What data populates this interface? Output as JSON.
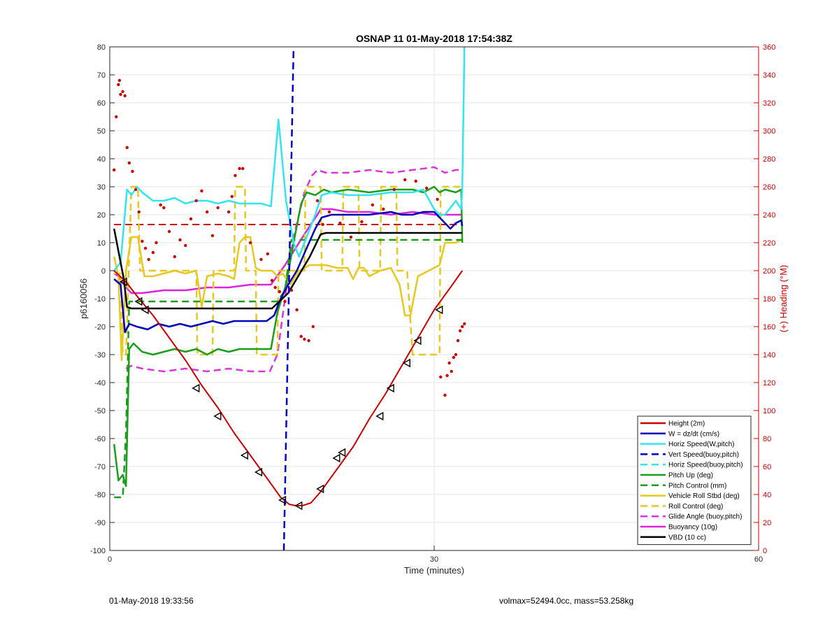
{
  "chart_data": {
    "type": "line",
    "title": "OSNAP 11 01-May-2018 17:54:38Z",
    "xlabel": "Time (minutes)",
    "ylabel": "p6160056",
    "y2label": "(+) Heading (°M)",
    "xlim": [
      0,
      60
    ],
    "ylim": [
      -100,
      80
    ],
    "y2lim": [
      0,
      360
    ],
    "xticks": [
      "0",
      "30",
      "60"
    ],
    "yticks": [
      "80",
      "70",
      "60",
      "50",
      "40",
      "30",
      "20",
      "10",
      "0",
      "-10",
      "-20",
      "-30",
      "-40",
      "-50",
      "-60",
      "-70",
      "-80",
      "-90",
      "-100"
    ],
    "y2ticks": [
      "360",
      "340",
      "320",
      "300",
      "280",
      "260",
      "240",
      "220",
      "200",
      "180",
      "160",
      "140",
      "120",
      "100",
      "80",
      "60",
      "40",
      "20",
      "0"
    ],
    "grid": true,
    "legend_position": "bottom-right",
    "series": [
      {
        "name": "Height (2m)",
        "color": "#cc0000",
        "style": "solid",
        "width": 2,
        "x": [
          0.4,
          1.5,
          2.5,
          4,
          5.5,
          7,
          8.5,
          10,
          11.5,
          13,
          14.5,
          15.8,
          16.6,
          17.2,
          17.8,
          18.6,
          19.5,
          21,
          22.5,
          24,
          25.5,
          27,
          28.5,
          30,
          31.5,
          32.6
        ],
        "y": [
          0,
          -4,
          -9,
          -16,
          -24,
          -32,
          -41,
          -49,
          -58,
          -66,
          -74,
          -81,
          -83.5,
          -84,
          -84,
          -83,
          -79,
          -71,
          -63,
          -53,
          -44,
          -34,
          -24,
          -14,
          -6,
          0
        ]
      },
      {
        "name": "W = dz/dt (cm/s)",
        "color": "#0000bb",
        "style": "solid",
        "width": 2.5,
        "x": [
          0.4,
          1,
          1.4,
          1.8,
          2.5,
          3.5,
          4.5,
          5.5,
          6.5,
          7.5,
          8.5,
          9.5,
          10.5,
          11.5,
          12.5,
          13.5,
          14.5,
          15.2,
          15.8,
          16.5,
          17.3,
          18.2,
          19,
          19.6,
          20.5,
          22,
          24,
          26,
          27,
          28,
          29,
          30,
          31,
          31.5,
          32,
          32.5,
          32.6
        ],
        "y": [
          -3,
          -5,
          -22,
          -19,
          -20,
          -21,
          -19,
          -20,
          -19,
          -20,
          -19,
          -18,
          -19,
          -18,
          -18,
          -18,
          -18,
          -16,
          -10,
          -5,
          0,
          8,
          15,
          19,
          20,
          20,
          20,
          21,
          20,
          20,
          21,
          21,
          17,
          15,
          17,
          18,
          16
        ]
      },
      {
        "name": "Horiz Speed(W,pitch)",
        "color": "#33e5f0",
        "style": "solid",
        "width": 2.5,
        "x": [
          0.4,
          1,
          1.6,
          2,
          2.5,
          3,
          4,
          5,
          6,
          7,
          8,
          9,
          10,
          11,
          12,
          13,
          14,
          14.9,
          15.6,
          16.3,
          17,
          17.5,
          18,
          19,
          19.6,
          20.5,
          22,
          24,
          26,
          28,
          29,
          30,
          30.5,
          31,
          32,
          32.5,
          32.6,
          32.8
        ],
        "y": [
          0,
          3,
          29,
          27,
          30,
          28,
          25,
          25,
          26,
          24,
          25,
          25,
          24,
          25,
          24,
          24,
          24,
          23,
          54,
          25,
          10,
          5,
          10,
          20,
          27,
          28,
          27,
          27,
          28,
          28,
          29,
          22,
          20,
          20,
          25,
          22,
          30,
          80
        ]
      },
      {
        "name": "Vert Speed(buoy,pitch)",
        "color": "#0000cc",
        "style": "dash",
        "width": 2.5,
        "x": [
          16.1,
          17.0
        ],
        "y": [
          -100,
          80
        ]
      },
      {
        "name": "Horiz Speed(buoy,pitch)",
        "color": "#33e5f0",
        "style": "dash",
        "width": 2.5,
        "x": [],
        "y": []
      },
      {
        "name": "Pitch Up (deg)",
        "color": "#1a9e1a",
        "style": "solid",
        "width": 2.5,
        "x": [
          0.4,
          0.8,
          1.2,
          1.5,
          1.8,
          2.2,
          3,
          4,
          5,
          6,
          7,
          8,
          9,
          10,
          11,
          12,
          13,
          14,
          14.9,
          15.5,
          16.3,
          17,
          17.7,
          18.2,
          19,
          19.8,
          20.5,
          22,
          24,
          26,
          28,
          29,
          30,
          30.5,
          31,
          32,
          32.5,
          32.6
        ],
        "y": [
          -62,
          -75,
          -73,
          -77,
          -28,
          -26,
          -29,
          -30,
          -29,
          -28,
          -29,
          -28,
          -30,
          -28,
          -29,
          -28,
          -28,
          -28,
          -28,
          -15,
          -5,
          10,
          24,
          28,
          27,
          29,
          28,
          29,
          28,
          29,
          29,
          28,
          30,
          28,
          29,
          28,
          29,
          10
        ]
      },
      {
        "name": "Pitch Control (mm)",
        "color": "#1a9e1a",
        "style": "dash",
        "width": 2.5,
        "x": [
          0.4,
          1.2,
          1.5,
          1.8,
          3,
          6,
          10,
          14,
          15.5,
          16.2,
          16.8,
          19,
          20,
          22,
          26,
          30,
          32.6
        ],
        "y": [
          -81,
          -81,
          -58,
          -11,
          -11,
          -11,
          -11,
          -11,
          -11,
          -7,
          11,
          11,
          11,
          11,
          11,
          11,
          11
        ]
      },
      {
        "name": "Vehicle Roll Stbd (deg)",
        "color": "#e6c81f",
        "style": "solid",
        "width": 2.5,
        "x": [
          0.4,
          0.8,
          1.1,
          1.5,
          2,
          2.6,
          3.2,
          4,
          5,
          6,
          7,
          8,
          8.5,
          9,
          10,
          11,
          11.5,
          12,
          12.5,
          13,
          13.5,
          14,
          15,
          15.5,
          16,
          16.7,
          17.5,
          18.5,
          19,
          20,
          21,
          22,
          22.5,
          23,
          23.5,
          24,
          25,
          26,
          26.8,
          27.3,
          27.8,
          28.5,
          29.5,
          30.5,
          31,
          32,
          32.5
        ],
        "y": [
          5,
          -2,
          -32,
          0,
          12,
          12,
          -2,
          -2,
          -1,
          0,
          -1,
          0,
          -13,
          -2,
          -1,
          -2,
          -3,
          10,
          12,
          12,
          1,
          0,
          0,
          -2,
          -1,
          -5,
          0,
          2,
          2,
          2,
          1,
          1,
          -3,
          1,
          1,
          -2,
          0,
          1,
          -5,
          -16,
          -16,
          -2,
          0,
          2,
          10,
          10,
          11
        ]
      },
      {
        "name": "Roll Control (deg)",
        "color": "#e6c81f",
        "style": "dash",
        "width": 2.5,
        "x": [
          0.4,
          1,
          1.2,
          1.5,
          2,
          2.6,
          2.8,
          3.2,
          4,
          8,
          8.1,
          9.5,
          9.6,
          11.5,
          11.6,
          12.5,
          12.6,
          13.5,
          13.6,
          15.5,
          15.6,
          17,
          18,
          18.1,
          19.5,
          19.6,
          21.5,
          21.6,
          23,
          23.1,
          25,
          25.1,
          26.5,
          26.6,
          27.5,
          28,
          28.1,
          30.5,
          30.6,
          32.6
        ],
        "y": [
          -1,
          -1,
          -30,
          -30,
          30,
          30,
          0,
          0,
          0,
          0,
          -30,
          -30,
          0,
          0,
          30,
          30,
          0,
          0,
          -30,
          -30,
          0,
          0,
          0,
          30,
          30,
          0,
          0,
          30,
          30,
          0,
          0,
          30,
          30,
          0,
          0,
          -30,
          -30,
          -30,
          30,
          30
        ]
      },
      {
        "name": "Glide Angle (buoy,pitch)",
        "color": "#dd33dd",
        "style": "dash",
        "width": 2.5,
        "x": [
          1.5,
          2,
          3,
          5,
          7,
          9,
          11,
          13,
          14.8,
          15.5,
          16.2,
          17,
          18,
          18.7,
          19.2,
          20,
          22,
          24,
          26,
          28,
          30,
          31,
          32,
          32.6
        ],
        "y": [
          -35,
          -34,
          -35,
          -36,
          -35,
          -36,
          -35,
          -36,
          -36,
          -30,
          -10,
          12,
          28,
          34,
          36,
          35,
          35,
          36,
          35,
          36,
          37,
          35,
          36,
          36
        ]
      },
      {
        "name": "Buoyancy (10g)",
        "color": "#dd22dd",
        "style": "solid",
        "width": 2.5,
        "x": [
          0.4,
          0.8,
          1.5,
          2,
          3,
          5,
          7,
          9,
          11,
          13,
          14.9,
          16.2,
          17.5,
          18.5,
          19.2,
          19.5,
          20.5,
          22,
          24,
          26,
          28,
          30,
          32.6
        ],
        "y": [
          -1,
          -2,
          -6,
          -8,
          -8,
          -7,
          -7,
          -6,
          -6,
          -5,
          -5,
          2,
          10,
          16,
          20,
          22,
          22,
          21,
          21,
          20,
          21,
          20,
          20
        ]
      },
      {
        "name": "VBD (10 cc)",
        "color": "#000000",
        "style": "solid",
        "width": 2.5,
        "x": [
          0.4,
          1.3,
          1.6,
          2,
          15,
          16.5,
          18.5,
          19.5,
          20,
          21,
          26,
          30,
          32.6
        ],
        "y": [
          15,
          -3,
          -13,
          -13.5,
          -13.5,
          -8,
          5,
          13,
          13.5,
          13.5,
          13.5,
          13.5,
          13.5
        ]
      }
    ],
    "reference_lines": [
      {
        "color": "#cc0000",
        "style": "dash",
        "y2": 233,
        "x": [
          0.4,
          32.6
        ]
      }
    ],
    "markers": {
      "color": "#000000",
      "series": "Height (2m)",
      "x": [
        1.3,
        2.7,
        3.3,
        8,
        10,
        12.5,
        13.8,
        16,
        17.5,
        19.5,
        21,
        21.5,
        25,
        26,
        27.5,
        28.5,
        30.5
      ],
      "y": [
        -4,
        -11,
        -14,
        -42,
        -52,
        -66,
        -72,
        -82,
        -84,
        -78,
        -67,
        -65,
        -52,
        -42,
        -33,
        -25,
        -14
      ]
    },
    "heading_points": {
      "color": "#cc0000",
      "x": [
        0.4,
        0.6,
        0.8,
        0.9,
        1,
        1.2,
        1.4,
        1.6,
        1.8,
        2.1,
        2.4,
        2.7,
        3,
        3.3,
        3.6,
        4,
        4.3,
        4.7,
        5,
        5.5,
        6,
        6.5,
        7,
        7.5,
        8,
        8.5,
        9,
        9.5,
        10,
        11,
        11.3,
        11.6,
        12,
        12.3,
        13,
        14,
        14.6,
        15,
        15.3,
        15.7,
        16.2,
        16.8,
        17.3,
        17.7,
        18,
        18.4,
        18.8,
        19.2,
        19.7,
        20.3,
        21.3,
        22.3,
        23.3,
        24.3,
        25.3,
        26.3,
        27.3,
        28.3,
        29.3,
        30.3,
        30.6,
        31,
        31.2,
        31.4,
        31.6,
        31.8,
        32,
        32.2,
        32.4,
        32.6,
        32.8
      ],
      "y": [
        272,
        310,
        333,
        336,
        326,
        328,
        325,
        288,
        277,
        271,
        258,
        242,
        221,
        216,
        208,
        213,
        220,
        247,
        245,
        228,
        210,
        222,
        218,
        237,
        250,
        257,
        242,
        225,
        245,
        242,
        253,
        268,
        273,
        273,
        220,
        208,
        212,
        193,
        188,
        185,
        178,
        186,
        172,
        153,
        151,
        150,
        160,
        250,
        233,
        242,
        234,
        224,
        235,
        247,
        244,
        258,
        265,
        264,
        259,
        251,
        124,
        111,
        125,
        134,
        128,
        138,
        140,
        150,
        157,
        160,
        162
      ]
    },
    "footer_left": "01-May-2018 19:33:56",
    "footer_right": "volmax=52494.0cc, mass=53.258kg"
  }
}
